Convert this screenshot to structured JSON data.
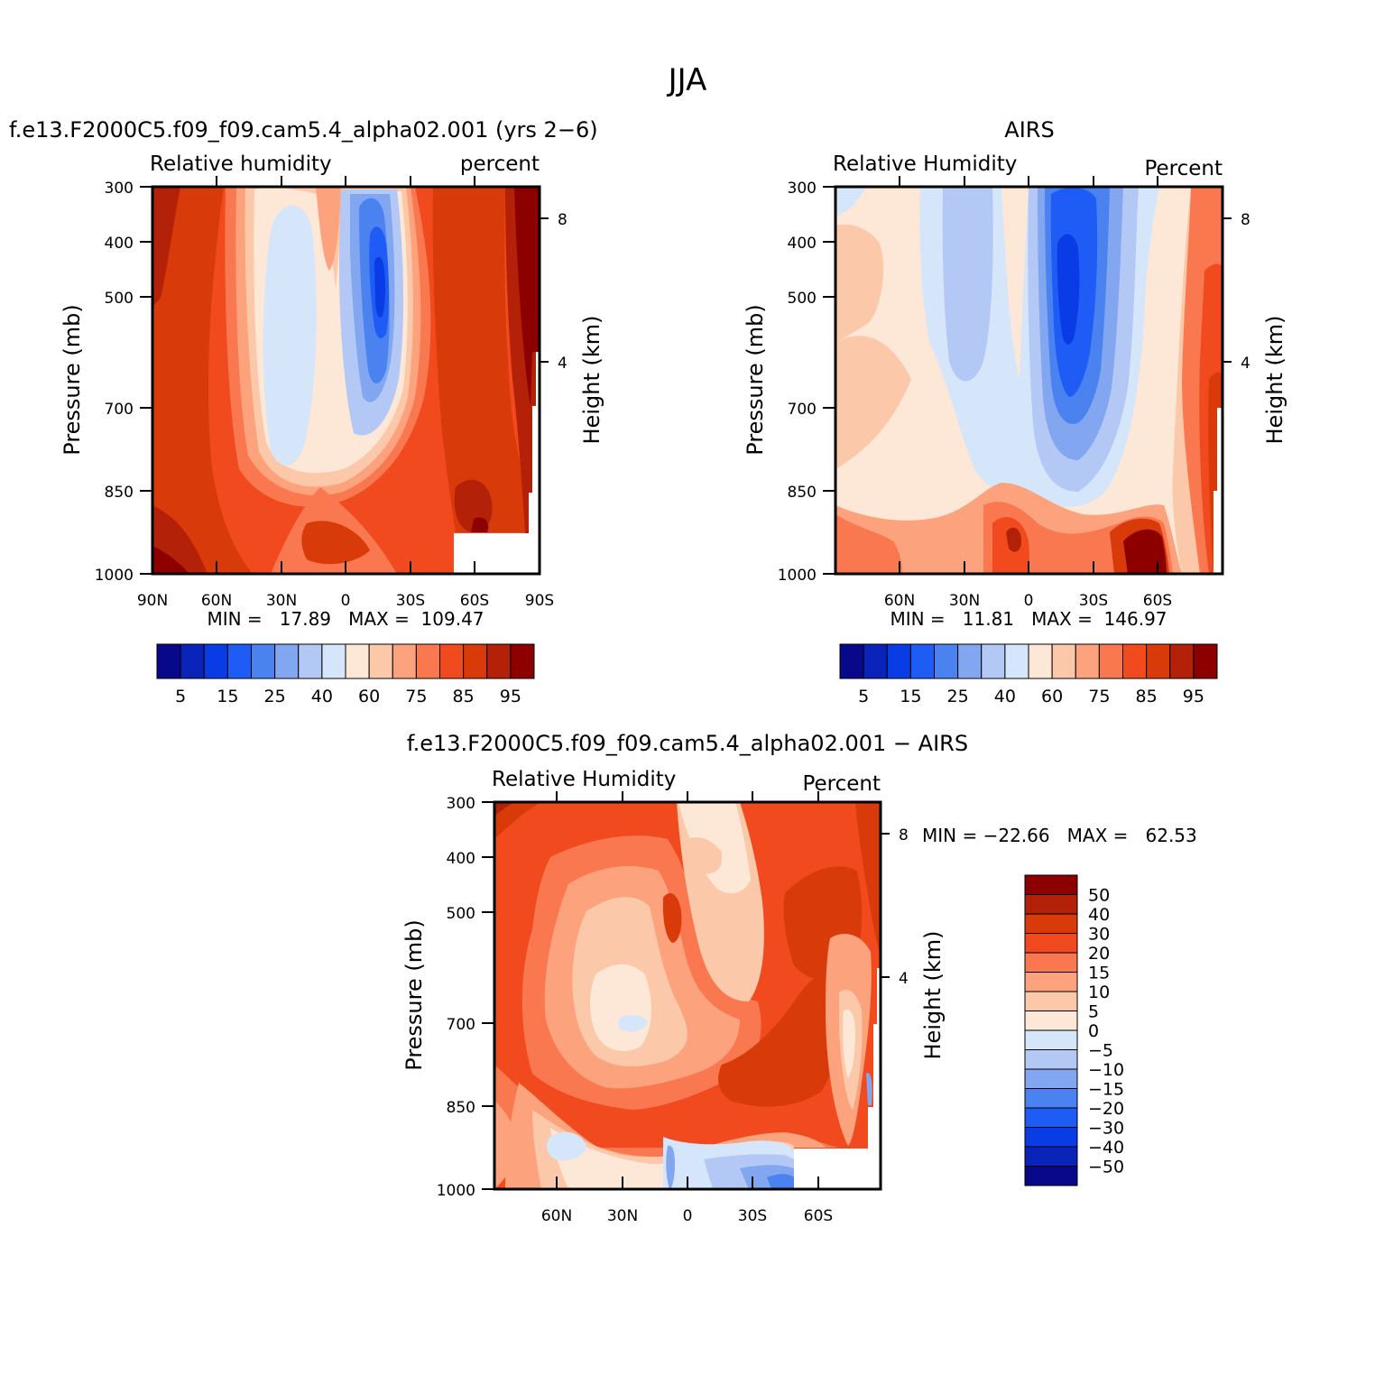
{
  "page_title": "JJA",
  "colors": {
    "rh_levels": [
      "#08088a",
      "#0a23b8",
      "#0a3ce6",
      "#1f5cf5",
      "#4a82f0",
      "#82a6f0",
      "#b4c8f5",
      "#d6e6fa",
      "#fde8d7",
      "#fcc8aa",
      "#fca27d",
      "#f97850",
      "#f04a1e",
      "#d93a0a",
      "#b32208",
      "#8c0000"
    ],
    "diff_levels": [
      "#8c0000",
      "#b32208",
      "#d93a0a",
      "#f04a1e",
      "#f97850",
      "#fca27d",
      "#fcc8aa",
      "#fde8d7",
      "#d6e6fa",
      "#b4c8f5",
      "#82a6f0",
      "#4a82f0",
      "#1f5cf5",
      "#0a3ce6",
      "#0a23b8",
      "#08088a"
    ]
  },
  "chart_data": [
    {
      "type": "heatmap",
      "id": "model",
      "title": "f.e13.F2000C5.f09_f09.cam5.4_alpha02.001 (yrs 2−6)",
      "left_string": "Relative humidity",
      "right_string": "percent",
      "ylabel": "Pressure (mb)",
      "y2label": "Height (km)",
      "y_ticks": [
        "300",
        "400",
        "500",
        "700",
        "850",
        "1000"
      ],
      "y2_ticks": [
        "8",
        "4"
      ],
      "x_ticks": [
        "90N",
        "60N",
        "30N",
        "0",
        "30S",
        "60S",
        "90S"
      ],
      "stats": "MIN =   17.89   MAX =  109.47",
      "min": 17.89,
      "max": 109.47,
      "colorbar_labels": [
        "5",
        "15",
        "25",
        "40",
        "60",
        "75",
        "85",
        "95"
      ]
    },
    {
      "type": "heatmap",
      "id": "obs",
      "title": "AIRS",
      "left_string": "Relative Humidity",
      "right_string": "Percent",
      "ylabel": "Pressure (mb)",
      "y2label": "Height (km)",
      "y_ticks": [
        "300",
        "400",
        "500",
        "700",
        "850",
        "1000"
      ],
      "y2_ticks": [
        "8",
        "4"
      ],
      "x_ticks": [
        "60N",
        "30N",
        "0",
        "30S",
        "60S"
      ],
      "stats": "MIN =   11.81   MAX =  146.97",
      "min": 11.81,
      "max": 146.97,
      "colorbar_labels": [
        "5",
        "15",
        "25",
        "40",
        "60",
        "75",
        "85",
        "95"
      ]
    },
    {
      "type": "heatmap",
      "id": "diff",
      "title": "f.e13.F2000C5.f09_f09.cam5.4_alpha02.001 − AIRS",
      "left_string": "Relative Humidity",
      "right_string": "Percent",
      "ylabel": "Pressure (mb)",
      "y2label": "Height (km)",
      "y_ticks": [
        "300",
        "400",
        "500",
        "700",
        "850",
        "1000"
      ],
      "y2_ticks": [
        "8",
        "4"
      ],
      "x_ticks": [
        "60N",
        "30N",
        "0",
        "30S",
        "60S"
      ],
      "stats": "MIN = −22.66   MAX =   62.53",
      "min": -22.66,
      "max": 62.53,
      "colorbar_labels": [
        "50",
        "40",
        "30",
        "20",
        "15",
        "10",
        "5",
        "0",
        "−5",
        "−10",
        "−15",
        "−20",
        "−30",
        "−40",
        "−50"
      ]
    }
  ]
}
